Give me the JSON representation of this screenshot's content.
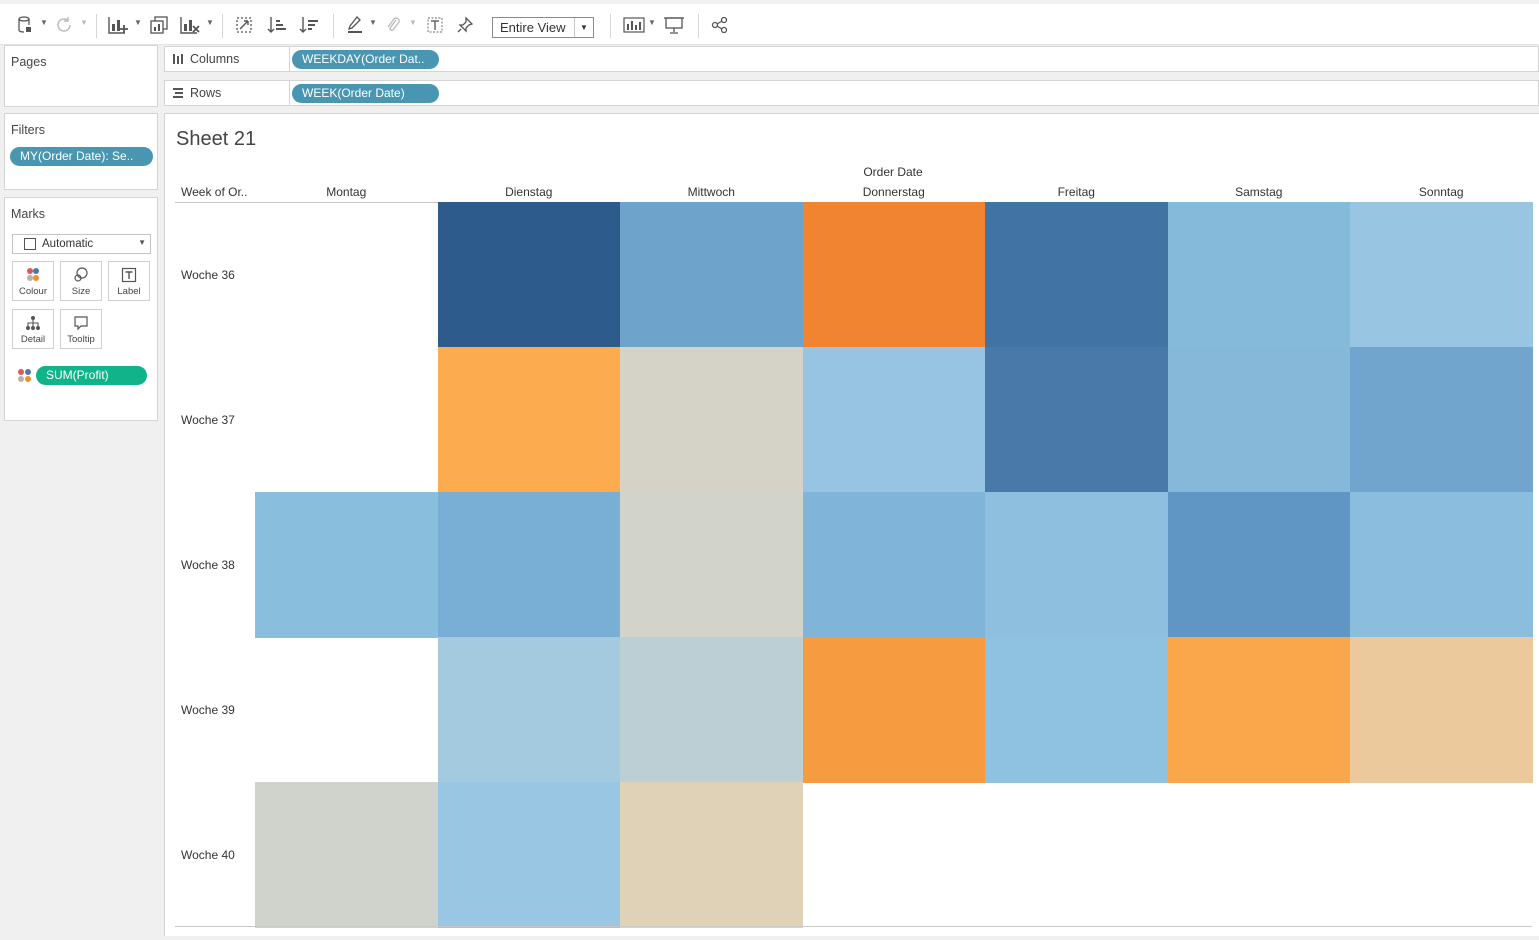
{
  "toolbar": {
    "icons": [
      "datasource-icon",
      "refresh-icon",
      "new-worksheet-icon",
      "duplicate-sheet-icon",
      "clear-sheet-icon",
      "swap-axes-icon",
      "sort-ascending-icon",
      "sort-descending-icon",
      "highlight-icon",
      "group-members-icon",
      "show-mark-labels-icon",
      "pin-axis-icon",
      "show-me-icon",
      "presentation-mode-icon",
      "share-icon"
    ],
    "view_select": "Entire View"
  },
  "pages": {
    "title": "Pages"
  },
  "filters": {
    "title": "Filters",
    "pill": "MY(Order Date): Se.."
  },
  "marks": {
    "title": "Marks",
    "type": "Automatic",
    "cards": {
      "colour": "Colour",
      "size": "Size",
      "label": "Label",
      "detail": "Detail",
      "tooltip": "Tooltip"
    },
    "measure_pill": "SUM(Profit)"
  },
  "shelves": {
    "columns": {
      "label": "Columns",
      "pill": "WEEKDAY(Order Dat.."
    },
    "rows": {
      "label": "Rows",
      "pill": "WEEK(Order Date)"
    }
  },
  "sheet": {
    "title": "Sheet 21",
    "column_group": "Order Date",
    "row_header": "Week of Or..",
    "columns": [
      "Montag",
      "Dienstag",
      "Mittwoch",
      "Donnerstag",
      "Freitag",
      "Samstag",
      "Sonntag"
    ],
    "rows": [
      "Woche 36",
      "Woche 37",
      "Woche 38",
      "Woche 39",
      "Woche 40"
    ]
  },
  "chart_data": {
    "type": "heatmap",
    "x": [
      "Montag",
      "Dienstag",
      "Mittwoch",
      "Donnerstag",
      "Freitag",
      "Samstag",
      "Sonntag"
    ],
    "y": [
      "Woche 36",
      "Woche 37",
      "Woche 38",
      "Woche 39",
      "Woche 40"
    ],
    "colors": [
      [
        null,
        "#2c5b8c",
        "#6ea3cb",
        "#f18430",
        "#4173a5",
        "#86badb",
        "#97c5e2"
      ],
      [
        null,
        "#fcab4f",
        "#d5d3c7",
        "#97c4e2",
        "#4879a9",
        "#86b8da",
        "#71a5cd"
      ],
      [
        "#8abedd",
        "#7aafd5",
        "#d2d4cb",
        "#80b4d8",
        "#8ebfdf",
        "#6096c3",
        "#8bbede"
      ],
      [
        null,
        "#a4cadf",
        "#bccfd5",
        "#f69b40",
        "#8fc1e0",
        "#faa64b",
        "#ebc99c"
      ],
      [
        "#d0d3cb",
        "#98c6e3",
        "#e0d2b6",
        null,
        null,
        null,
        null
      ]
    ]
  }
}
